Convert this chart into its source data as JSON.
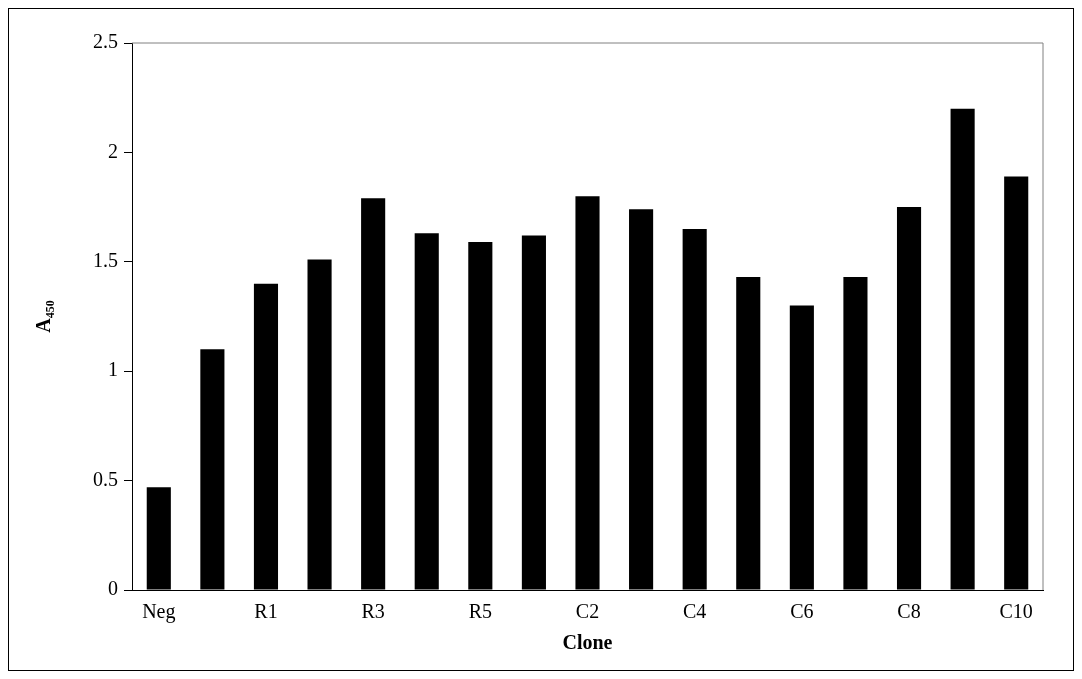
{
  "chart_data": {
    "type": "bar",
    "xlabel": "Clone",
    "ylabel": "A₄₅₀",
    "categories": [
      "Neg",
      null,
      "R1",
      null,
      "R3",
      null,
      "R5",
      null,
      "C2",
      null,
      "C4",
      null,
      "C6",
      null,
      "C8",
      null,
      "C10"
    ],
    "values": [
      0.47,
      1.1,
      1.4,
      1.51,
      1.79,
      1.63,
      1.59,
      1.62,
      1.8,
      1.74,
      1.65,
      1.43,
      1.3,
      1.43,
      1.75,
      2.2,
      1.89
    ],
    "color": "#000000",
    "ylim": [
      0,
      2.5
    ],
    "yticks": [
      0,
      0.5,
      1,
      1.5,
      2,
      2.5
    ],
    "grid": false,
    "legend": false
  }
}
